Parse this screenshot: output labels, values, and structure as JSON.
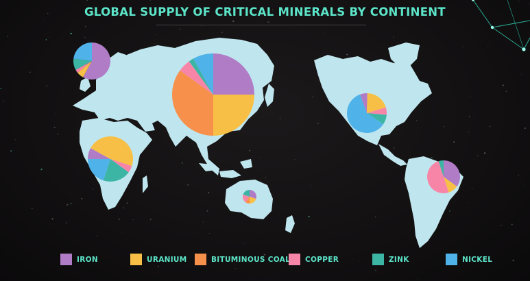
{
  "title": "GLOBAL SUPPLY OF CRITICAL MINERALS BY CONTINENT",
  "colors": {
    "background": "#121011",
    "land": "#bfe6ee",
    "title": "#5ce5c9",
    "iron": "#b07cc6",
    "uranium": "#f7bf45",
    "bituminous_coal": "#f7904a",
    "copper": "#f785a8",
    "zink": "#3db5a5",
    "nickel": "#4fb2e8"
  },
  "legend": [
    {
      "label": "IRON",
      "color": "#b07cc6"
    },
    {
      "label": "URANIUM",
      "color": "#f7bf45"
    },
    {
      "label": "BITUMINOUS COAL",
      "color": "#f7904a"
    },
    {
      "label": "COPPER",
      "color": "#f785a8"
    },
    {
      "label": "ZINK",
      "color": "#3db5a5"
    },
    {
      "label": "NICKEL",
      "color": "#4fb2e8"
    }
  ],
  "chart_data": {
    "type": "pie",
    "categories": [
      "IRON",
      "URANIUM",
      "BITUMINOUS COAL",
      "COPPER",
      "ZINK",
      "NICKEL"
    ],
    "series": [
      {
        "region": "Europe",
        "values": [
          58,
          6,
          0,
          3,
          10,
          23
        ]
      },
      {
        "region": "Asia",
        "values": [
          25,
          25,
          35,
          5,
          2,
          8
        ]
      },
      {
        "region": "Africa",
        "values": [
          8,
          47,
          0,
          5,
          20,
          20
        ]
      },
      {
        "region": "Oceania",
        "values": [
          30,
          20,
          10,
          20,
          20,
          0
        ]
      },
      {
        "region": "North America",
        "values": [
          6,
          20,
          0,
          6,
          8,
          60
        ]
      },
      {
        "region": "South America",
        "values": [
          35,
          10,
          0,
          50,
          5,
          0
        ]
      }
    ]
  }
}
